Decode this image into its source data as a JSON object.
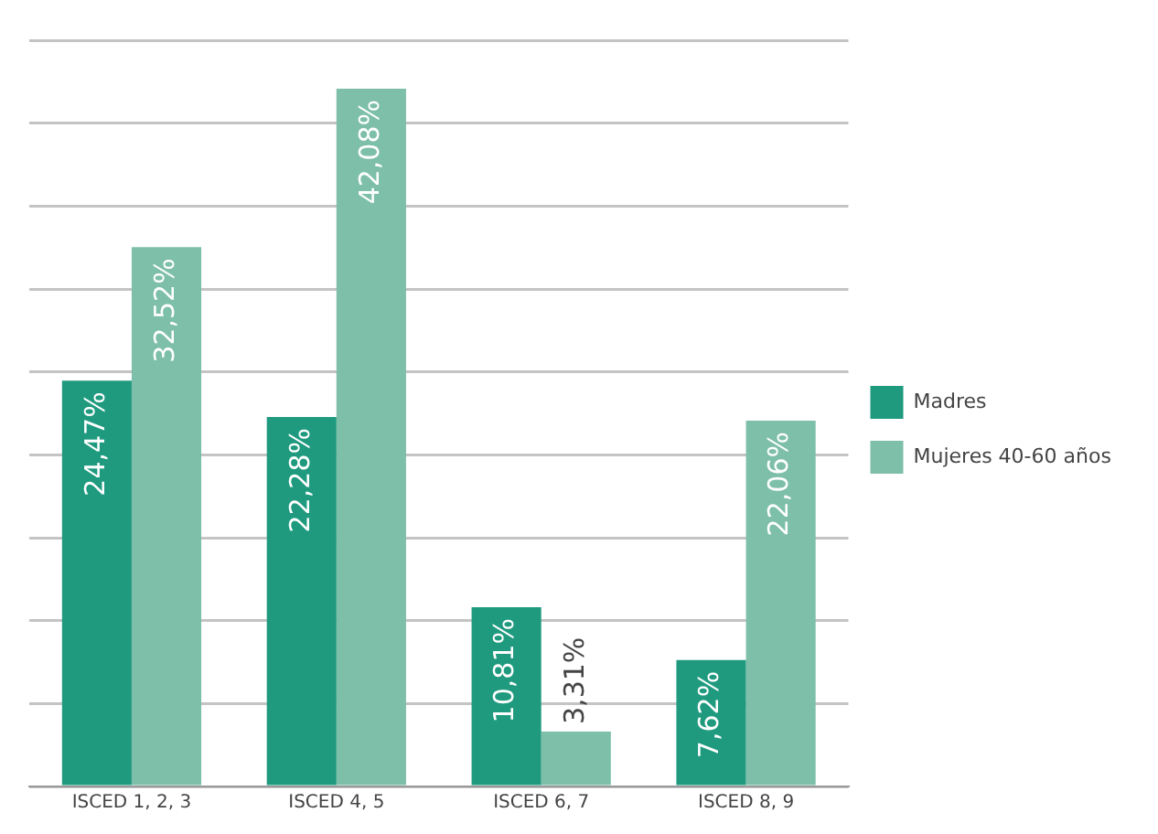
{
  "chart_data": {
    "type": "bar",
    "categories": [
      "ISCED 1, 2, 3",
      "ISCED 4, 5",
      "ISCED 6, 7",
      "ISCED 8, 9"
    ],
    "series": [
      {
        "name": "Madres",
        "color": "#1f9a7f",
        "values": [
          24.47,
          22.28,
          10.81,
          7.62
        ],
        "value_labels": [
          "24,47%",
          "22,28%",
          "10,81%",
          "7,62%"
        ]
      },
      {
        "name": "Mujeres 40-60 años",
        "color": "#7dbfa8",
        "values": [
          32.52,
          42.08,
          3.31,
          22.06
        ],
        "value_labels": [
          "32,52%",
          "42,08%",
          "3,31%",
          "22,06%"
        ]
      }
    ],
    "ylim": [
      0,
      45
    ],
    "yticks": [
      {
        "value": 0,
        "label": null
      },
      {
        "value": 5,
        "label": null
      },
      {
        "value": 10,
        "label": null
      },
      {
        "value": 15,
        "label": null
      },
      {
        "value": 20,
        "label": null
      },
      {
        "value": 25,
        "label": null
      },
      {
        "value": 30,
        "label": null
      },
      {
        "value": 35,
        "label": null
      },
      {
        "value": 40,
        "label": null
      },
      {
        "value": 45,
        "label": null
      }
    ],
    "tick_labels": "x",
    "grid": "y",
    "legend": "right"
  }
}
